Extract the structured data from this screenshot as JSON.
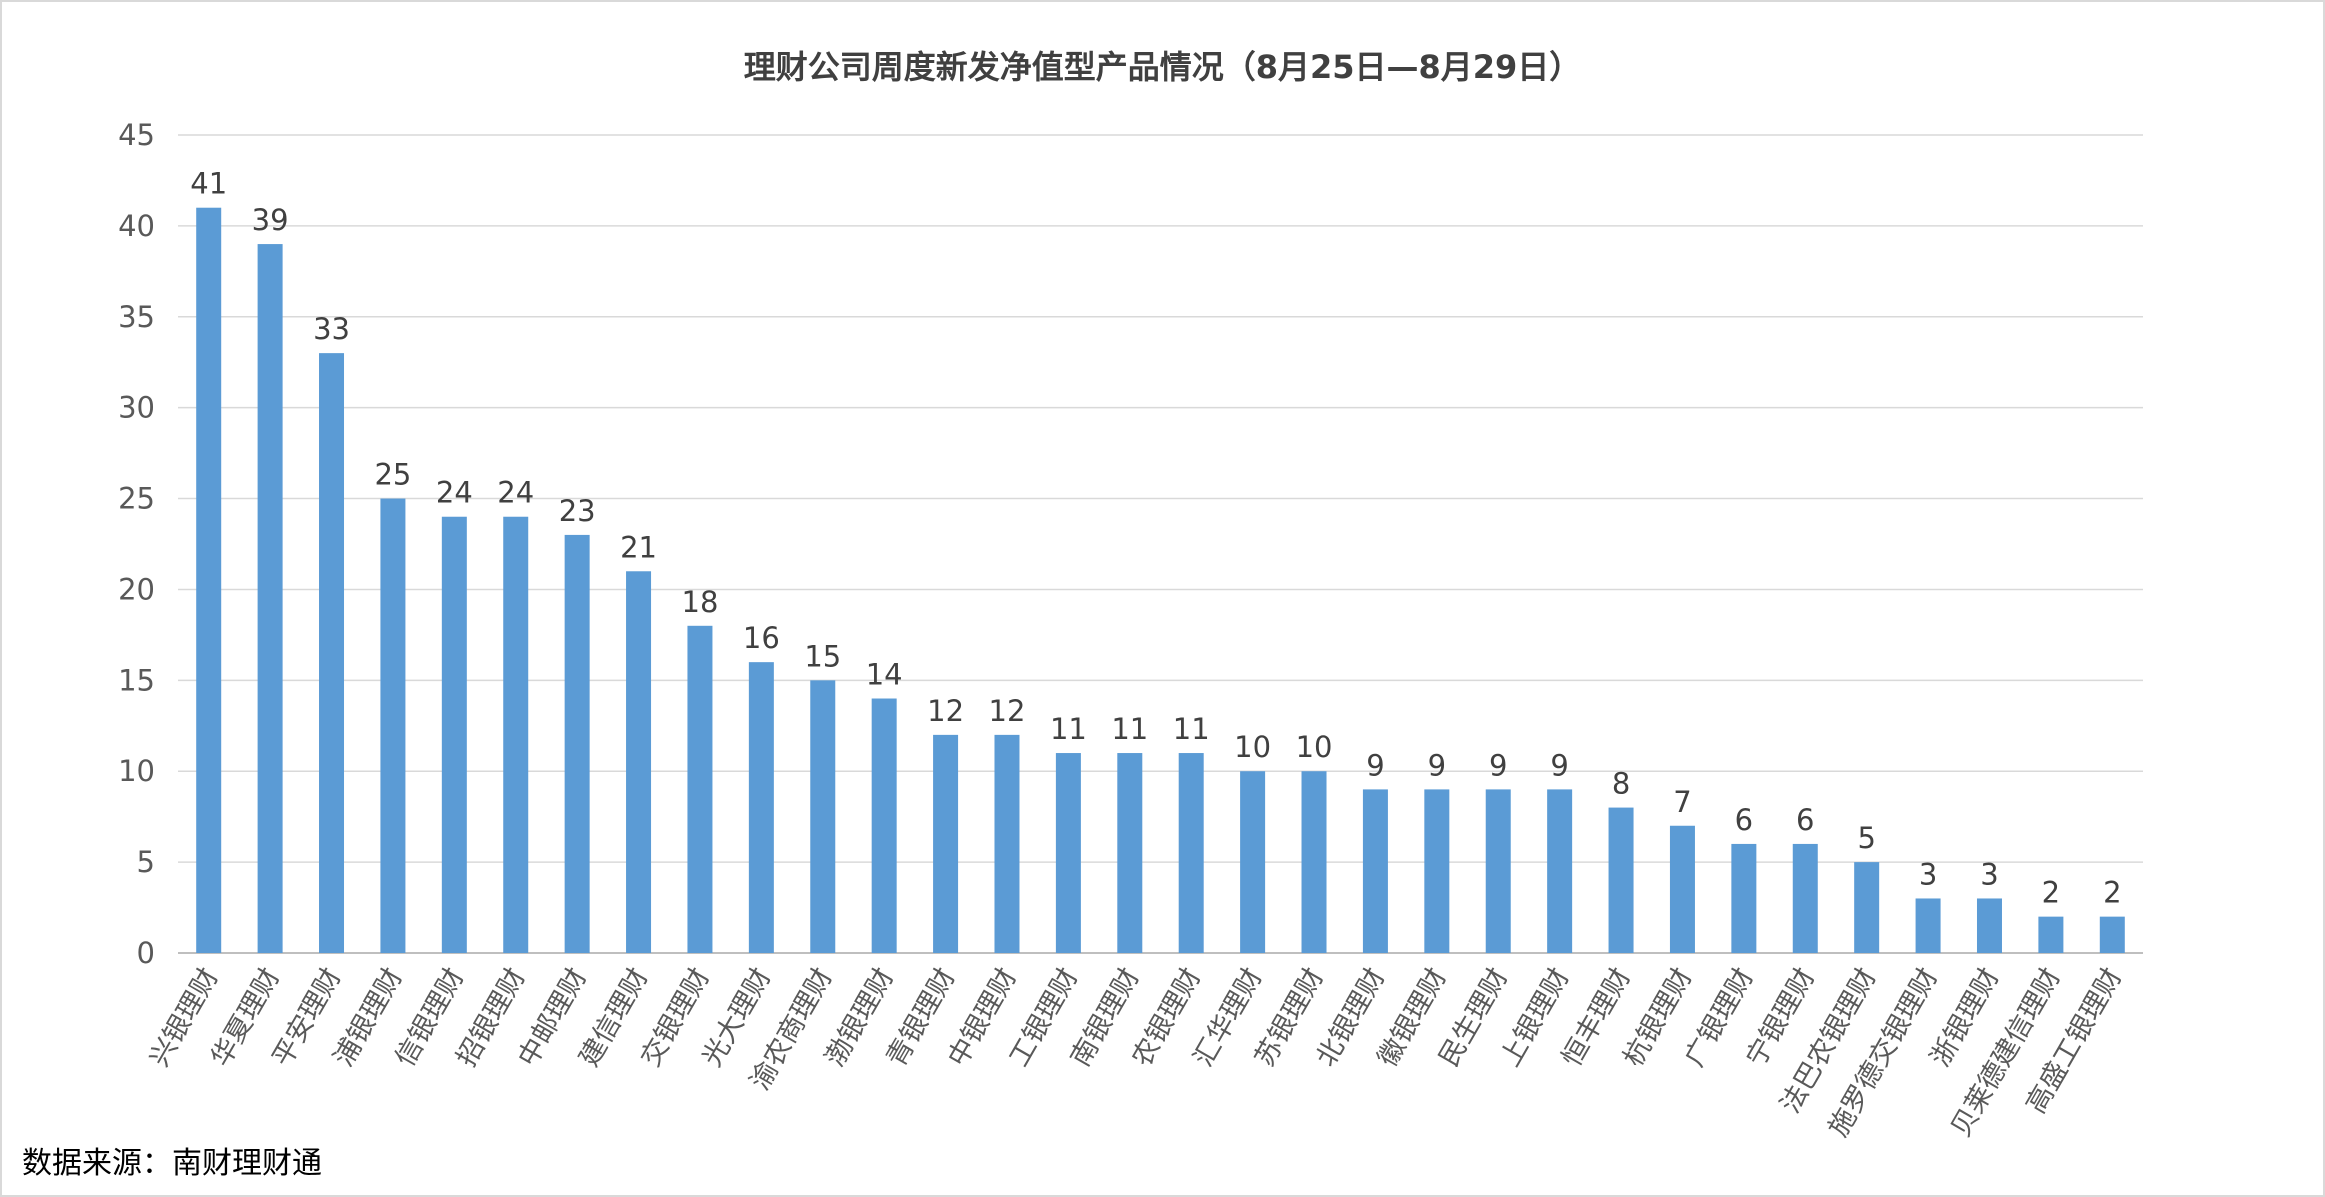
{
  "chart_data": {
    "type": "bar",
    "title": "理财公司周度新发净值型产品情况（8月25日—8月29日）",
    "xlabel": "",
    "ylabel": "",
    "ylim": [
      0,
      45
    ],
    "yticks": [
      0,
      5,
      10,
      15,
      20,
      25,
      30,
      35,
      40,
      45
    ],
    "grid": true,
    "legend": "none",
    "bar_color": "#5b9bd5",
    "categories": [
      "兴银理财",
      "华夏理财",
      "平安理财",
      "浦银理财",
      "信银理财",
      "招银理财",
      "中邮理财",
      "建信理财",
      "交银理财",
      "光大理财",
      "渝农商理财",
      "渤银理财",
      "青银理财",
      "中银理财",
      "工银理财",
      "南银理财",
      "农银理财",
      "汇华理财",
      "苏银理财",
      "北银理财",
      "徽银理财",
      "民生理财",
      "上银理财",
      "恒丰理财",
      "杭银理财",
      "广银理财",
      "宁银理财",
      "法巴农银理财",
      "施罗德交银理财",
      "浙银理财",
      "贝莱德建信理财",
      "高盛工银理财"
    ],
    "values": [
      41,
      39,
      33,
      25,
      24,
      24,
      23,
      21,
      18,
      16,
      15,
      14,
      12,
      12,
      11,
      11,
      11,
      10,
      10,
      9,
      9,
      9,
      9,
      8,
      7,
      6,
      6,
      5,
      3,
      3,
      2,
      2
    ]
  },
  "source": "数据来源：南财理财通"
}
